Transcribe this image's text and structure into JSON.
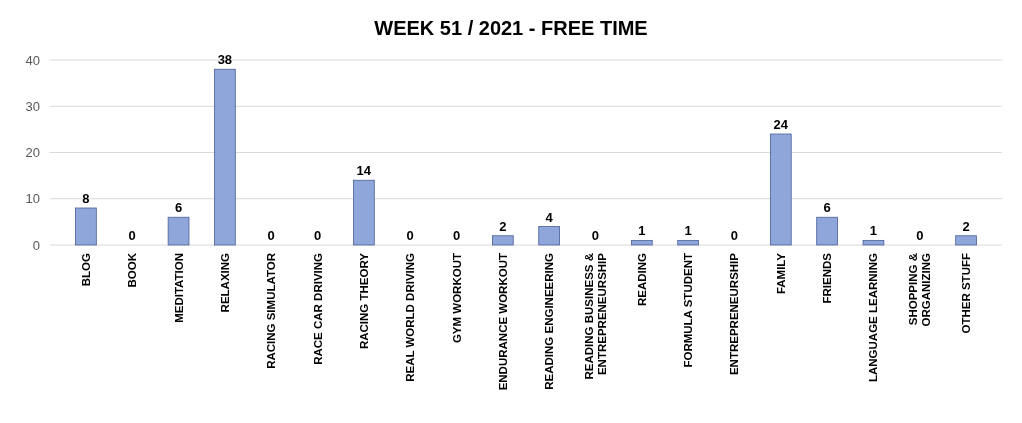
{
  "chart_data": {
    "type": "bar",
    "title": "WEEK 51 / 2021 - FREE TIME",
    "categories": [
      "BLOG",
      "BOOK",
      "MEDITATION",
      "RELAXING",
      "RACING SIMULATOR",
      "RACE CAR DRIVING",
      "RACING THEORY",
      "REAL WORLD DRIVING",
      "GYM WORKOUT",
      "ENDURANCE WORKOUT",
      "READING ENGINEERING",
      "READING BUSINESS & ENTREPRENEURSHIP",
      "READING",
      "FORMULA STUDENT",
      "ENTREPRENEURSHIP",
      "FAMILY",
      "FRIENDS",
      "LANGUAGE LEARNING",
      "SHOPPING & ORGANIZING",
      "OTHER STUFF"
    ],
    "values": [
      8,
      0,
      6,
      38,
      0,
      0,
      14,
      0,
      0,
      2,
      4,
      0,
      1,
      1,
      0,
      24,
      6,
      1,
      0,
      2
    ],
    "color": "#8fa6da",
    "ylim": [
      0,
      40
    ],
    "yticks": [
      0,
      10,
      20,
      30,
      40
    ],
    "grid": "y",
    "data_labels": true
  }
}
